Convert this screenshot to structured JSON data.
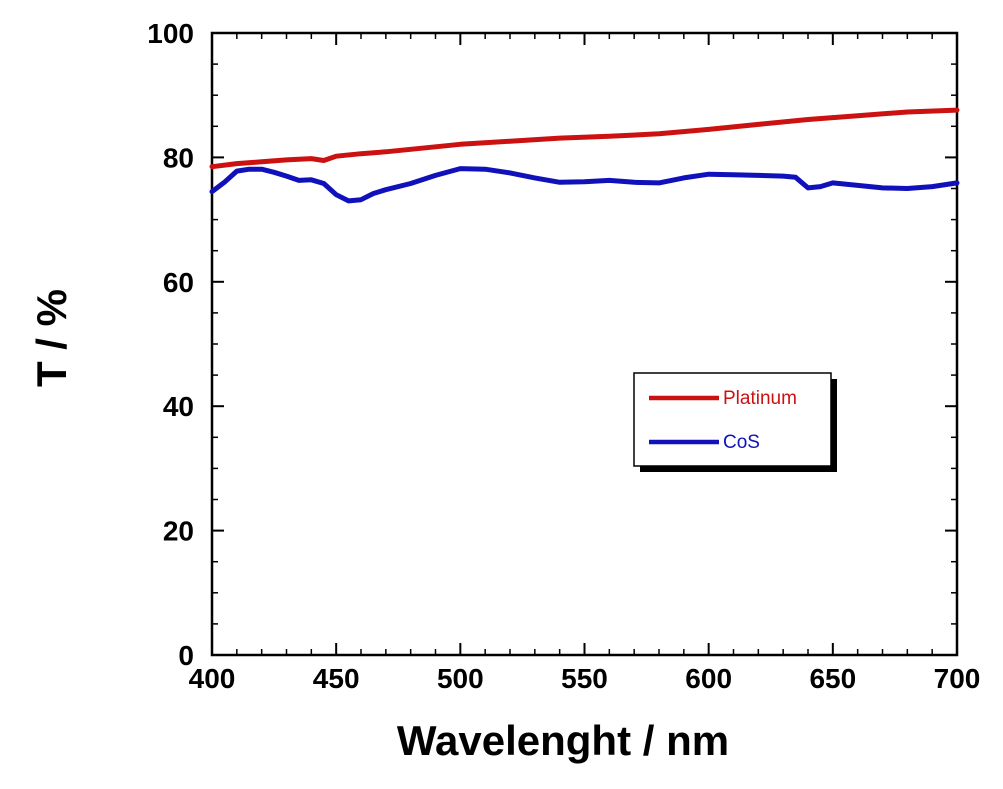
{
  "chart_data": {
    "type": "line",
    "title": "",
    "xlabel": "Wavelenght / nm",
    "ylabel": "T / %",
    "xlim": [
      400,
      700
    ],
    "ylim": [
      0,
      100
    ],
    "x_ticks": [
      400,
      450,
      500,
      550,
      600,
      650,
      700
    ],
    "y_ticks": [
      0,
      20,
      40,
      60,
      80,
      100
    ],
    "x_tick_labels": [
      "400",
      "450",
      "500",
      "550",
      "600",
      "650",
      "700"
    ],
    "y_tick_labels": [
      "0",
      "20",
      "40",
      "60",
      "80",
      "100"
    ],
    "grid": false,
    "legend": {
      "position": "center-right",
      "entries": [
        "Platinum",
        "CoS"
      ]
    },
    "series": [
      {
        "name": "Platinum",
        "color": "#cc1111",
        "x": [
          400,
          410,
          420,
          430,
          440,
          445,
          450,
          460,
          470,
          480,
          490,
          500,
          520,
          540,
          560,
          580,
          600,
          620,
          640,
          660,
          680,
          700
        ],
        "y": [
          78.5,
          79.0,
          79.3,
          79.6,
          79.8,
          79.5,
          80.2,
          80.6,
          80.9,
          81.3,
          81.7,
          82.1,
          82.6,
          83.1,
          83.4,
          83.8,
          84.5,
          85.3,
          86.1,
          86.7,
          87.3,
          87.6
        ]
      },
      {
        "name": "CoS",
        "color": "#1111bb",
        "x": [
          400,
          405,
          410,
          415,
          420,
          425,
          430,
          435,
          440,
          445,
          450,
          455,
          460,
          465,
          470,
          480,
          490,
          500,
          510,
          520,
          530,
          540,
          550,
          560,
          570,
          580,
          590,
          600,
          610,
          620,
          630,
          635,
          640,
          645,
          650,
          660,
          670,
          680,
          690,
          700
        ],
        "y": [
          74.5,
          76.0,
          77.8,
          78.1,
          78.1,
          77.6,
          77.0,
          76.3,
          76.4,
          75.8,
          74.0,
          73.0,
          73.2,
          74.2,
          74.8,
          75.8,
          77.1,
          78.2,
          78.1,
          77.5,
          76.7,
          76.0,
          76.1,
          76.3,
          76.0,
          75.9,
          76.7,
          77.3,
          77.2,
          77.1,
          77.0,
          76.8,
          75.1,
          75.3,
          75.9,
          75.5,
          75.1,
          75.0,
          75.3,
          75.9
        ]
      }
    ]
  }
}
